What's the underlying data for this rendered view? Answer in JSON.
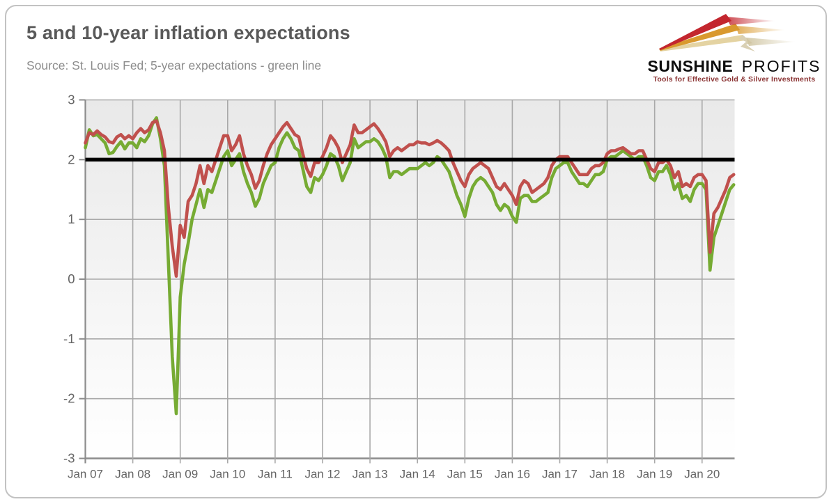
{
  "header": {
    "title": "5 and 10-year inflation expectations",
    "subtitle": "Source: St. Louis Fed; 5-year expectations - green line"
  },
  "logo": {
    "name_bold": "SUNSHINE",
    "name_light": "PROFITS",
    "tagline": "Tools for Effective Gold & Silver Investments",
    "arrow_colors": {
      "red": "#c3262e",
      "gold": "#d9992e",
      "pale": "#e4d3a2"
    },
    "tagline_color": "#8b3434"
  },
  "chart_data": {
    "type": "line",
    "title": "5 and 10-year inflation expectations",
    "xlabel": "",
    "ylabel": "",
    "ylim": [
      -3,
      3
    ],
    "y_ticks": [
      3,
      2,
      1,
      0,
      -1,
      -2,
      -3
    ],
    "y_tick_labels": [
      "3",
      "2",
      "1",
      "0",
      "-1",
      "-2",
      "-3"
    ],
    "x_tick_labels": [
      "Jan 07",
      "Jan 08",
      "Jan 09",
      "Jan 10",
      "Jan 11",
      "Jan 12",
      "Jan 13",
      "Jan 14",
      "Jan 15",
      "Jan 16",
      "Jan 17",
      "Jan 18",
      "Jan 19",
      "Jan 20"
    ],
    "x_start": 2007.0,
    "x_end": 2020.6667,
    "grid": true,
    "legend_position": "none (series identified in subtitle)",
    "reference_line": {
      "value": 2.0,
      "color": "#000000"
    },
    "series": [
      {
        "name": "5-year inflation expectations",
        "color": "#76ab33",
        "start": "Jan 2007",
        "interval": "monthly",
        "values": [
          2.2,
          2.5,
          2.4,
          2.42,
          2.35,
          2.28,
          2.1,
          2.12,
          2.22,
          2.3,
          2.18,
          2.28,
          2.28,
          2.2,
          2.35,
          2.3,
          2.4,
          2.6,
          2.7,
          2.35,
          1.9,
          0.3,
          -1.3,
          -2.25,
          -0.3,
          0.25,
          0.6,
          1.0,
          1.25,
          1.5,
          1.2,
          1.5,
          1.45,
          1.65,
          1.85,
          2.05,
          2.15,
          1.9,
          2.0,
          2.1,
          1.8,
          1.6,
          1.45,
          1.22,
          1.35,
          1.6,
          1.75,
          1.9,
          1.95,
          2.2,
          2.35,
          2.45,
          2.35,
          2.2,
          2.15,
          1.85,
          1.55,
          1.45,
          1.7,
          1.65,
          1.75,
          1.9,
          2.1,
          2.05,
          1.9,
          1.65,
          1.8,
          1.95,
          2.35,
          2.2,
          2.25,
          2.3,
          2.3,
          2.35,
          2.3,
          2.2,
          2.05,
          1.7,
          1.8,
          1.8,
          1.75,
          1.8,
          1.85,
          1.85,
          1.85,
          1.9,
          1.95,
          1.9,
          1.95,
          2.05,
          2.0,
          1.9,
          1.8,
          1.6,
          1.4,
          1.25,
          1.05,
          1.35,
          1.55,
          1.65,
          1.7,
          1.65,
          1.55,
          1.45,
          1.25,
          1.15,
          1.25,
          1.2,
          1.05,
          0.95,
          1.35,
          1.4,
          1.4,
          1.3,
          1.3,
          1.35,
          1.4,
          1.45,
          1.7,
          1.85,
          1.9,
          1.95,
          1.95,
          1.8,
          1.7,
          1.6,
          1.6,
          1.55,
          1.65,
          1.75,
          1.75,
          1.8,
          2.0,
          2.05,
          2.05,
          2.1,
          2.15,
          2.1,
          2.05,
          2.0,
          2.05,
          2.05,
          1.9,
          1.7,
          1.65,
          1.8,
          1.8,
          1.9,
          1.75,
          1.5,
          1.6,
          1.35,
          1.4,
          1.3,
          1.5,
          1.6,
          1.6,
          1.5,
          0.15,
          0.7,
          0.9,
          1.1,
          1.3,
          1.5,
          1.58
        ]
      },
      {
        "name": "10-year inflation expectations",
        "color": "#c0504d",
        "start": "Jan 2007",
        "interval": "monthly",
        "values": [
          2.28,
          2.45,
          2.42,
          2.48,
          2.42,
          2.38,
          2.3,
          2.28,
          2.38,
          2.42,
          2.35,
          2.4,
          2.35,
          2.45,
          2.52,
          2.45,
          2.5,
          2.62,
          2.65,
          2.45,
          2.15,
          1.2,
          0.55,
          0.05,
          0.9,
          0.7,
          1.3,
          1.4,
          1.6,
          1.9,
          1.6,
          1.9,
          1.8,
          2.0,
          2.2,
          2.4,
          2.4,
          2.15,
          2.25,
          2.4,
          2.1,
          1.9,
          1.75,
          1.52,
          1.65,
          1.9,
          2.1,
          2.25,
          2.35,
          2.45,
          2.55,
          2.62,
          2.52,
          2.42,
          2.38,
          2.1,
          1.85,
          1.72,
          1.95,
          1.95,
          2.05,
          2.2,
          2.4,
          2.32,
          2.2,
          1.95,
          2.1,
          2.25,
          2.58,
          2.45,
          2.45,
          2.5,
          2.55,
          2.6,
          2.52,
          2.42,
          2.3,
          2.05,
          2.15,
          2.2,
          2.15,
          2.2,
          2.25,
          2.25,
          2.3,
          2.28,
          2.28,
          2.25,
          2.28,
          2.32,
          2.28,
          2.22,
          2.15,
          1.95,
          1.8,
          1.65,
          1.55,
          1.75,
          1.85,
          1.9,
          1.95,
          1.9,
          1.85,
          1.7,
          1.55,
          1.5,
          1.6,
          1.5,
          1.4,
          1.25,
          1.55,
          1.65,
          1.6,
          1.45,
          1.5,
          1.55,
          1.6,
          1.7,
          1.9,
          2.0,
          2.05,
          2.05,
          2.05,
          1.95,
          1.85,
          1.75,
          1.75,
          1.75,
          1.85,
          1.9,
          1.9,
          1.95,
          2.1,
          2.15,
          2.15,
          2.18,
          2.2,
          2.15,
          2.1,
          2.1,
          2.15,
          2.15,
          2.0,
          1.85,
          1.8,
          1.95,
          1.95,
          2.0,
          1.9,
          1.7,
          1.8,
          1.55,
          1.6,
          1.55,
          1.7,
          1.75,
          1.75,
          1.65,
          0.45,
          1.1,
          1.2,
          1.35,
          1.5,
          1.7,
          1.75
        ]
      }
    ],
    "style": {
      "grid_color": "#a9a9a9",
      "axis_color": "#8c8c8c",
      "tick_label_color": "#646464",
      "plot_bg_top": "#e9e9e9",
      "plot_bg_bottom": "#ffffff"
    }
  }
}
